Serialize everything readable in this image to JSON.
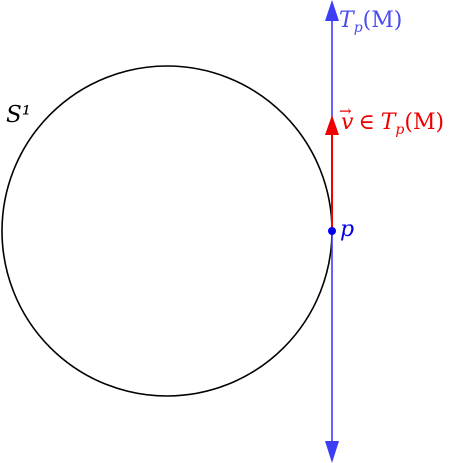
{
  "diagram": {
    "labels": {
      "circle": "S¹",
      "tangent_space": "T",
      "tangent_space_sub": "p",
      "tangent_space_tail": "(M)",
      "vector_name": "v",
      "vector_arrow": "→",
      "vector_relation": "∈",
      "vector_space": "T",
      "vector_space_sub": "p",
      "vector_space_tail": "(M)",
      "point": "p"
    },
    "colors": {
      "circle": "#000000",
      "tangent_line": "#3d3df5",
      "vector": "#f00000",
      "point": "#0000ee",
      "tangent_label": "#4b4bf0",
      "vector_label": "#ee0000",
      "point_label": "#0000ee"
    }
  }
}
